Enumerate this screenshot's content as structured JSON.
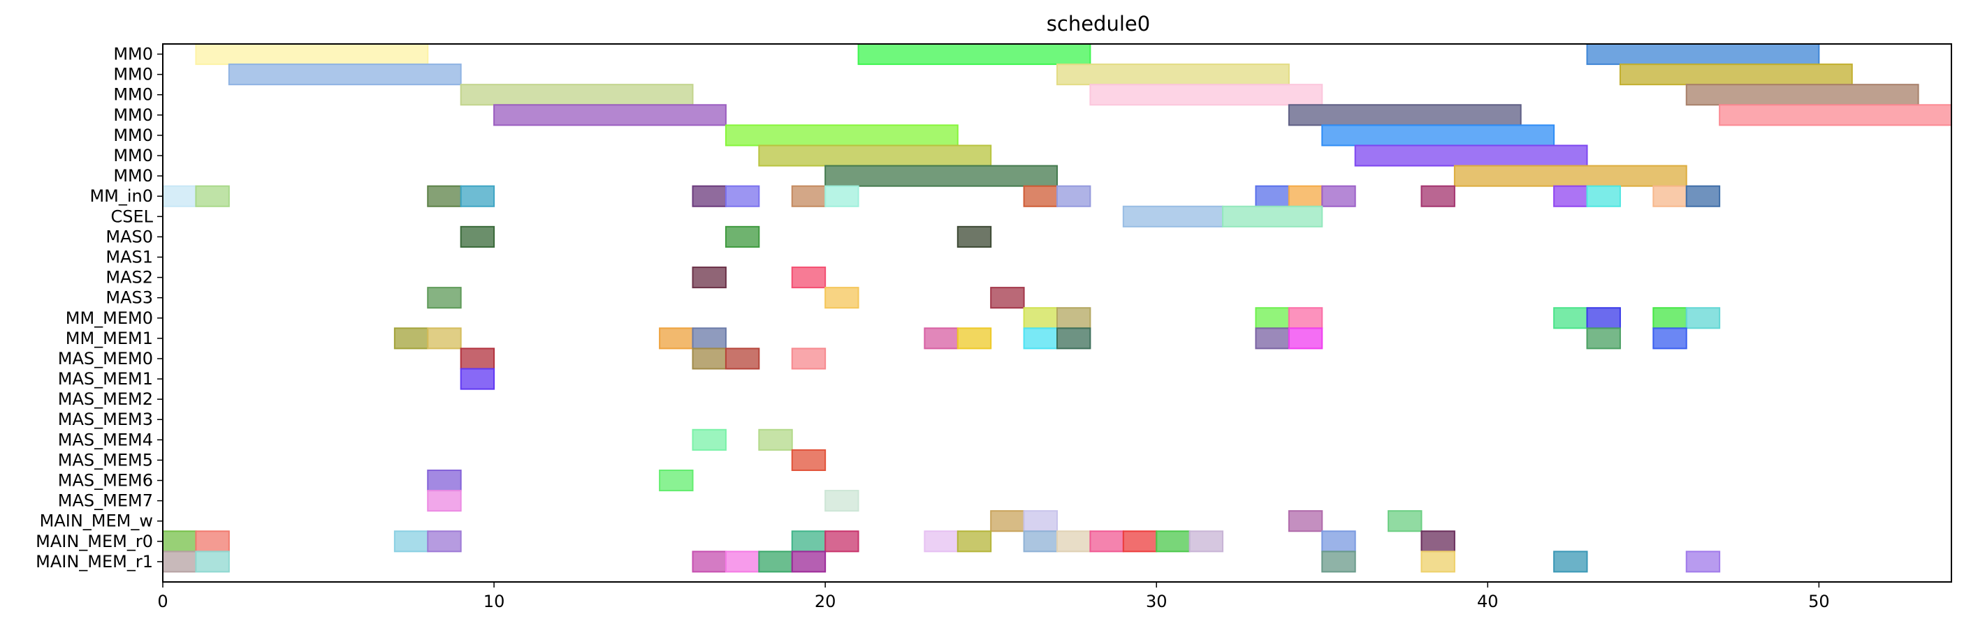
{
  "chart_data": {
    "type": "gantt",
    "title": "schedule0",
    "xlabel": "",
    "ylabel": "",
    "xlim": [
      0,
      54
    ],
    "xticks": [
      0,
      10,
      20,
      30,
      40,
      50
    ],
    "rows": [
      "MM0",
      "MM0",
      "MM0",
      "MM0",
      "MM0",
      "MM0",
      "MM0",
      "MM_in0",
      "CSEL",
      "MAS0",
      "MAS1",
      "MAS2",
      "MAS3",
      "MM_MEM0",
      "MM_MEM1",
      "MAS_MEM0",
      "MAS_MEM1",
      "MAS_MEM2",
      "MAS_MEM3",
      "MAS_MEM4",
      "MAS_MEM5",
      "MAS_MEM6",
      "MAS_MEM7",
      "MAIN_MEM_w",
      "MAIN_MEM_r0",
      "MAIN_MEM_r1"
    ],
    "grid": false,
    "bars": [
      {
        "row": 0,
        "start": 1,
        "end": 8,
        "color": "#fdf3a6"
      },
      {
        "row": 0,
        "start": 21,
        "end": 28,
        "color": "#3ff550"
      },
      {
        "row": 0,
        "start": 43,
        "end": 50,
        "color": "#3f86d6"
      },
      {
        "row": 1,
        "start": 2,
        "end": 9,
        "color": "#8fb3e3"
      },
      {
        "row": 1,
        "start": 27,
        "end": 34,
        "color": "#e3dc84"
      },
      {
        "row": 1,
        "start": 44,
        "end": 51,
        "color": "#c2af2e"
      },
      {
        "row": 2,
        "start": 9,
        "end": 16,
        "color": "#c2d48c"
      },
      {
        "row": 2,
        "start": 28,
        "end": 35,
        "color": "#fcc6dc"
      },
      {
        "row": 2,
        "start": 46,
        "end": 53,
        "color": "#a8806a"
      },
      {
        "row": 3,
        "start": 10,
        "end": 17,
        "color": "#9b5ec0"
      },
      {
        "row": 3,
        "start": 34,
        "end": 41,
        "color": "#5e5e84"
      },
      {
        "row": 3,
        "start": 47,
        "end": 54,
        "color": "#fb8a93"
      },
      {
        "row": 4,
        "start": 17,
        "end": 24,
        "color": "#87f53b"
      },
      {
        "row": 4,
        "start": 35,
        "end": 42,
        "color": "#2f8df6"
      },
      {
        "row": 5,
        "start": 18,
        "end": 25,
        "color": "#b8c43f"
      },
      {
        "row": 5,
        "start": 36,
        "end": 43,
        "color": "#7d47f0"
      },
      {
        "row": 6,
        "start": 20,
        "end": 27,
        "color": "#447a4e"
      },
      {
        "row": 6,
        "start": 39,
        "end": 46,
        "color": "#ddad3f"
      },
      {
        "row": 7,
        "start": 0,
        "end": 1,
        "color": "#c8e7f6"
      },
      {
        "row": 7,
        "start": 1,
        "end": 2,
        "color": "#a9d98a"
      },
      {
        "row": 7,
        "start": 8,
        "end": 9,
        "color": "#5c8247"
      },
      {
        "row": 7,
        "start": 9,
        "end": 10,
        "color": "#3ea5c4"
      },
      {
        "row": 7,
        "start": 16,
        "end": 17,
        "color": "#6b3a7c"
      },
      {
        "row": 7,
        "start": 17,
        "end": 18,
        "color": "#7b72ee"
      },
      {
        "row": 7,
        "start": 19,
        "end": 20,
        "color": "#c48a5f"
      },
      {
        "row": 7,
        "start": 20,
        "end": 21,
        "color": "#9ff0dc"
      },
      {
        "row": 7,
        "start": 26,
        "end": 27,
        "color": "#cf5c36"
      },
      {
        "row": 7,
        "start": 27,
        "end": 28,
        "color": "#9499dd"
      },
      {
        "row": 7,
        "start": 33,
        "end": 34,
        "color": "#5a70ea"
      },
      {
        "row": 7,
        "start": 34,
        "end": 35,
        "color": "#f5aa46"
      },
      {
        "row": 7,
        "start": 35,
        "end": 36,
        "color": "#9c60c8"
      },
      {
        "row": 7,
        "start": 38,
        "end": 39,
        "color": "#a3336e"
      },
      {
        "row": 7,
        "start": 42,
        "end": 43,
        "color": "#9046f0"
      },
      {
        "row": 7,
        "start": 43,
        "end": 44,
        "color": "#4fe6e0"
      },
      {
        "row": 7,
        "start": 45,
        "end": 46,
        "color": "#f7b88c"
      },
      {
        "row": 7,
        "start": 46,
        "end": 47,
        "color": "#3f6ea8"
      },
      {
        "row": 8,
        "start": 29,
        "end": 32,
        "color": "#98bde4"
      },
      {
        "row": 8,
        "start": 32,
        "end": 35,
        "color": "#94e8bd"
      },
      {
        "row": 9,
        "start": 9,
        "end": 10,
        "color": "#3a6a3a"
      },
      {
        "row": 9,
        "start": 17,
        "end": 18,
        "color": "#3f9a3f"
      },
      {
        "row": 9,
        "start": 24,
        "end": 25,
        "color": "#3d4a34"
      },
      {
        "row": 11,
        "start": 16,
        "end": 17,
        "color": "#6b3248"
      },
      {
        "row": 11,
        "start": 19,
        "end": 20,
        "color": "#f44f72"
      },
      {
        "row": 12,
        "start": 8,
        "end": 9,
        "color": "#5e9a58"
      },
      {
        "row": 12,
        "start": 20,
        "end": 21,
        "color": "#f5c65a"
      },
      {
        "row": 12,
        "start": 25,
        "end": 26,
        "color": "#a3374a"
      },
      {
        "row": 13,
        "start": 26,
        "end": 27,
        "color": "#d0e250"
      },
      {
        "row": 13,
        "start": 27,
        "end": 28,
        "color": "#b3a760"
      },
      {
        "row": 13,
        "start": 33,
        "end": 34,
        "color": "#6df04e"
      },
      {
        "row": 13,
        "start": 34,
        "end": 35,
        "color": "#fb6ea7"
      },
      {
        "row": 13,
        "start": 42,
        "end": 43,
        "color": "#4ae48a"
      },
      {
        "row": 13,
        "start": 43,
        "end": 44,
        "color": "#3a3ae8"
      },
      {
        "row": 13,
        "start": 45,
        "end": 46,
        "color": "#45e745"
      },
      {
        "row": 13,
        "start": 46,
        "end": 47,
        "color": "#62d7d4"
      },
      {
        "row": 14,
        "start": 7,
        "end": 8,
        "color": "#a3a33a"
      },
      {
        "row": 14,
        "start": 8,
        "end": 9,
        "color": "#d5bd5c"
      },
      {
        "row": 14,
        "start": 15,
        "end": 16,
        "color": "#eea23e"
      },
      {
        "row": 14,
        "start": 16,
        "end": 17,
        "color": "#6a7aa8"
      },
      {
        "row": 14,
        "start": 23,
        "end": 24,
        "color": "#d75fa3"
      },
      {
        "row": 14,
        "start": 24,
        "end": 25,
        "color": "#eec928"
      },
      {
        "row": 14,
        "start": 26,
        "end": 27,
        "color": "#4ce2f3"
      },
      {
        "row": 14,
        "start": 27,
        "end": 28,
        "color": "#3d6f5a"
      },
      {
        "row": 14,
        "start": 33,
        "end": 34,
        "color": "#7a62a3"
      },
      {
        "row": 14,
        "start": 34,
        "end": 35,
        "color": "#f03ef0"
      },
      {
        "row": 14,
        "start": 43,
        "end": 44,
        "color": "#4aa062"
      },
      {
        "row": 14,
        "start": 45,
        "end": 46,
        "color": "#3a5ff0"
      },
      {
        "row": 15,
        "start": 9,
        "end": 10,
        "color": "#b2323e"
      },
      {
        "row": 15,
        "start": 16,
        "end": 17,
        "color": "#a18a48"
      },
      {
        "row": 15,
        "start": 17,
        "end": 18,
        "color": "#b6453a"
      },
      {
        "row": 15,
        "start": 19,
        "end": 20,
        "color": "#f78a8f"
      },
      {
        "row": 16,
        "start": 9,
        "end": 10,
        "color": "#6037f3"
      },
      {
        "row": 19,
        "start": 16,
        "end": 17,
        "color": "#7af2a8"
      },
      {
        "row": 19,
        "start": 18,
        "end": 19,
        "color": "#b3d98a"
      },
      {
        "row": 20,
        "start": 19,
        "end": 20,
        "color": "#e2533a"
      },
      {
        "row": 21,
        "start": 8,
        "end": 9,
        "color": "#8462d8"
      },
      {
        "row": 21,
        "start": 15,
        "end": 16,
        "color": "#63ed6f"
      },
      {
        "row": 22,
        "start": 8,
        "end": 9,
        "color": "#ec8ae3"
      },
      {
        "row": 22,
        "start": 20,
        "end": 21,
        "color": "#cde6d6"
      },
      {
        "row": 23,
        "start": 25,
        "end": 26,
        "color": "#c9a45c"
      },
      {
        "row": 23,
        "start": 26,
        "end": 27,
        "color": "#c8c3eb"
      },
      {
        "row": 23,
        "start": 34,
        "end": 35,
        "color": "#b06aab"
      },
      {
        "row": 23,
        "start": 37,
        "end": 38,
        "color": "#6ccf83"
      },
      {
        "row": 24,
        "start": 0,
        "end": 1,
        "color": "#76c048"
      },
      {
        "row": 24,
        "start": 1,
        "end": 2,
        "color": "#f07a6e"
      },
      {
        "row": 24,
        "start": 7,
        "end": 8,
        "color": "#8ad0e3"
      },
      {
        "row": 24,
        "start": 8,
        "end": 9,
        "color": "#9e7ad6"
      },
      {
        "row": 24,
        "start": 19,
        "end": 20,
        "color": "#40b48a"
      },
      {
        "row": 24,
        "start": 20,
        "end": 21,
        "color": "#c8346c"
      },
      {
        "row": 24,
        "start": 23,
        "end": 24,
        "color": "#e6c0f2"
      },
      {
        "row": 24,
        "start": 24,
        "end": 25,
        "color": "#b5b53a"
      },
      {
        "row": 24,
        "start": 26,
        "end": 27,
        "color": "#8fb2d6"
      },
      {
        "row": 24,
        "start": 27,
        "end": 28,
        "color": "#e0d1b4"
      },
      {
        "row": 24,
        "start": 28,
        "end": 29,
        "color": "#f05a93"
      },
      {
        "row": 24,
        "start": 29,
        "end": 30,
        "color": "#ec3e3e"
      },
      {
        "row": 24,
        "start": 30,
        "end": 31,
        "color": "#4cc84c"
      },
      {
        "row": 24,
        "start": 31,
        "end": 32,
        "color": "#c8b4d6"
      },
      {
        "row": 24,
        "start": 35,
        "end": 36,
        "color": "#7a9ae0"
      },
      {
        "row": 24,
        "start": 38,
        "end": 39,
        "color": "#6a2e5c"
      },
      {
        "row": 25,
        "start": 0,
        "end": 1,
        "color": "#b5a1a3"
      },
      {
        "row": 25,
        "start": 1,
        "end": 2,
        "color": "#8fd8d0"
      },
      {
        "row": 25,
        "start": 16,
        "end": 17,
        "color": "#c64fb0"
      },
      {
        "row": 25,
        "start": 17,
        "end": 18,
        "color": "#f47ae4"
      },
      {
        "row": 25,
        "start": 18,
        "end": 19,
        "color": "#3aa86a"
      },
      {
        "row": 25,
        "start": 19,
        "end": 20,
        "color": "#9c2a98"
      },
      {
        "row": 25,
        "start": 35,
        "end": 36,
        "color": "#6a9a8a"
      },
      {
        "row": 25,
        "start": 38,
        "end": 39,
        "color": "#eed06a"
      },
      {
        "row": 25,
        "start": 42,
        "end": 43,
        "color": "#3a98b6"
      },
      {
        "row": 25,
        "start": 46,
        "end": 47,
        "color": "#a07aea"
      }
    ]
  }
}
